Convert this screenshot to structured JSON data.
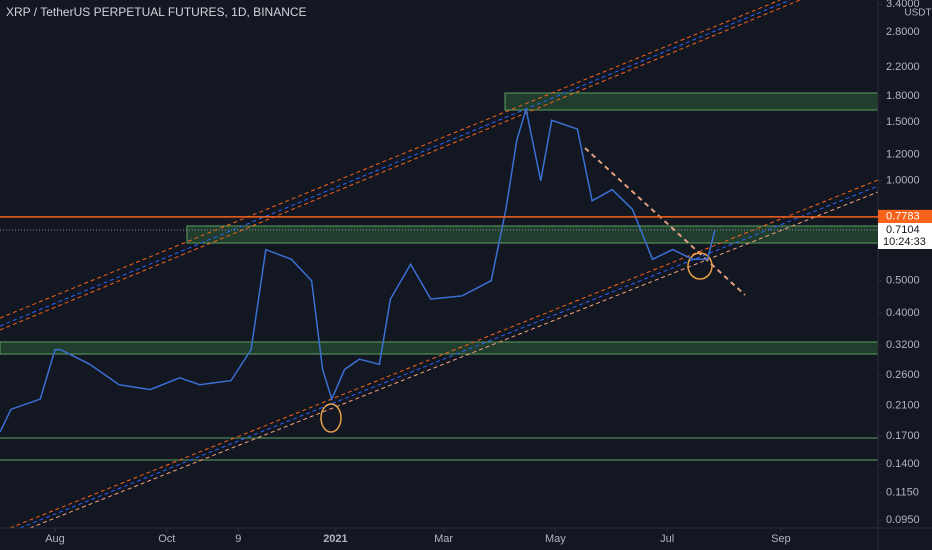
{
  "chart_data": {
    "type": "line",
    "title": "XRP / TetherUS PERPETUAL FUTURES, 1D, BINANCE",
    "unit": "USDT",
    "log": true,
    "color": "#3b6fd4",
    "x": [
      "2020-07-02",
      "2020-07-08",
      "2020-07-24",
      "2020-08-01",
      "2020-08-04",
      "2020-08-20",
      "2020-09-05",
      "2020-09-22",
      "2020-10-08",
      "2020-10-19",
      "2020-11-05",
      "2020-11-16",
      "2020-11-24",
      "2020-12-08",
      "2020-12-19",
      "2020-12-25",
      "2020-12-30",
      "2021-01-06",
      "2021-01-14",
      "2021-01-25",
      "2021-01-31",
      "2021-02-11",
      "2021-02-22",
      "2021-03-11",
      "2021-03-27",
      "2021-04-04",
      "2021-04-10",
      "2021-04-15",
      "2021-04-23",
      "2021-04-29",
      "2021-05-13",
      "2021-05-21",
      "2021-06-01",
      "2021-06-12",
      "2021-06-23",
      "2021-07-04",
      "2021-07-15",
      "2021-07-23",
      "2021-07-27"
    ],
    "values": [
      0.175,
      0.205,
      0.22,
      0.31,
      0.31,
      0.28,
      0.243,
      0.235,
      0.255,
      0.243,
      0.25,
      0.31,
      0.62,
      0.58,
      0.5,
      0.27,
      0.22,
      0.27,
      0.29,
      0.28,
      0.44,
      0.56,
      0.44,
      0.45,
      0.5,
      0.82,
      1.33,
      1.64,
      1.0,
      1.52,
      1.43,
      0.87,
      0.94,
      0.82,
      0.58,
      0.62,
      0.58,
      0.58,
      0.7104
    ],
    "xlim": [
      "2020-07-02",
      "2021-10-24"
    ],
    "xticks": [
      {
        "value": "2020-08-01",
        "label": "Aug"
      },
      {
        "value": "2020-10-01",
        "label": "Oct"
      },
      {
        "value": "2020-11-09",
        "label": "9"
      },
      {
        "value": "2021-01-01",
        "label": "2021"
      },
      {
        "value": "2021-03-01",
        "label": "Mar"
      },
      {
        "value": "2021-05-01",
        "label": "May"
      },
      {
        "value": "2021-07-01",
        "label": "Jul"
      },
      {
        "value": "2021-09-01",
        "label": "Sep"
      }
    ],
    "ylim": [
      0.09,
      3.5
    ],
    "yticks": [
      {
        "value": 3.4,
        "label": "3.4000"
      },
      {
        "value": 2.8,
        "label": "2.8000"
      },
      {
        "value": 2.2,
        "label": "2.2000"
      },
      {
        "value": 1.8,
        "label": "1.8000"
      },
      {
        "value": 1.5,
        "label": "1.5000"
      },
      {
        "value": 1.2,
        "label": "1.2000"
      },
      {
        "value": 1,
        "label": "1.0000"
      },
      {
        "value": 0.5,
        "label": "0.5000"
      },
      {
        "value": 0.4,
        "label": "0.4000"
      },
      {
        "value": 0.32,
        "label": "0.3200"
      },
      {
        "value": 0.26,
        "label": "0.2600"
      },
      {
        "value": 0.21,
        "label": "0.2100"
      },
      {
        "value": 0.17,
        "label": "0.1700"
      },
      {
        "value": 0.14,
        "label": "0.1400"
      },
      {
        "value": 0.115,
        "label": "0.1150"
      },
      {
        "value": 0.095,
        "label": "0.0950"
      }
    ],
    "price_labels": [
      {
        "value": 0.7783,
        "label": "0.7783",
        "color": "#f7631b"
      },
      {
        "value": 0.7104,
        "label": "0.7104",
        "countdown": "10:24:33"
      }
    ]
  }
}
